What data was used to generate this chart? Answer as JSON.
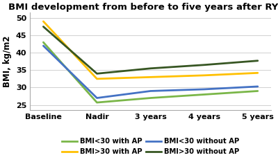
{
  "title": "BMI development from before to five years after RYGB",
  "ylabel": "BMI, kg/m2",
  "x_labels": [
    "Baseline",
    "Nadir",
    "3 years",
    "4 years",
    "5 years"
  ],
  "series": [
    {
      "label": "BMI<30 with AP",
      "color": "#7ab648",
      "values": [
        43.0,
        25.7,
        27.0,
        28.0,
        29.0
      ]
    },
    {
      "label": "BMI<30 without AP",
      "color": "#4472c4",
      "values": [
        42.0,
        27.0,
        29.0,
        29.5,
        30.3
      ]
    },
    {
      "label": "BMI>30 with AP",
      "color": "#ffc000",
      "values": [
        49.0,
        32.5,
        33.0,
        33.5,
        34.2
      ]
    },
    {
      "label": "BMI>30 without AP",
      "color": "#375623",
      "values": [
        47.5,
        34.0,
        35.5,
        36.5,
        37.7
      ]
    }
  ],
  "ylim": [
    23.5,
    51.5
  ],
  "yticks": [
    25,
    30,
    35,
    40,
    45,
    50
  ],
  "title_fontsize": 9.5,
  "axis_label_fontsize": 8.5,
  "tick_fontsize": 8.0,
  "legend_fontsize": 7.2,
  "line_width": 2.0,
  "background_color": "#ffffff",
  "grid_color": "#d0d0d0",
  "legend_order": [
    0,
    2,
    1,
    3
  ]
}
